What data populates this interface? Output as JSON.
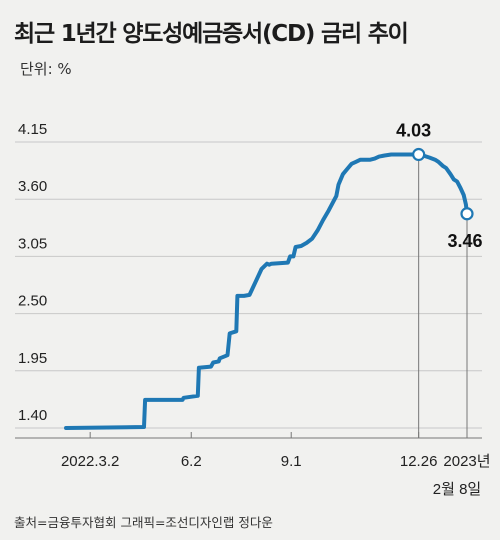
{
  "title": "최근 1년간 양도성예금증서(CD) 금리 추이",
  "unit_label": "단위: %",
  "footer": "출처=금융투자협회  그래픽=조선디자인랩 정다운",
  "colors": {
    "line": "#1f78b4",
    "grid": "#c8c8c8",
    "axis": "#777777",
    "background": "#f1f1ef"
  },
  "chart_data": {
    "type": "line",
    "title": "최근 1년간 양도성예금증서(CD) 금리 추이",
    "ylabel": "%",
    "ylim": [
      1.4,
      4.15
    ],
    "yticks": [
      "1.40",
      "1.95",
      "2.50",
      "3.05",
      "3.60",
      "4.15"
    ],
    "xticks": [
      "2022.3.2",
      "6.2",
      "9.1",
      "12.26",
      "2023년"
    ],
    "xtick_sublabel": "2월 8일",
    "x_range": [
      "2022-02-08",
      "2023-02-08"
    ],
    "grid": true,
    "series": [
      {
        "dates": [
          "2022-02-08",
          "2022-04-20",
          "2022-04-21",
          "2022-05-25",
          "2022-05-26",
          "2022-06-08",
          "2022-06-09",
          "2022-06-20",
          "2022-06-22",
          "2022-06-27",
          "2022-06-28",
          "2022-07-05",
          "2022-07-07",
          "2022-07-13",
          "2022-07-14",
          "2022-07-20",
          "2022-07-25",
          "2022-08-05",
          "2022-08-10",
          "2022-08-12",
          "2022-08-14",
          "2022-08-29",
          "2022-08-31",
          "2022-09-03",
          "2022-09-05",
          "2022-09-10",
          "2022-09-15",
          "2022-09-20",
          "2022-09-25",
          "2022-09-30",
          "2022-10-05",
          "2022-10-10",
          "2022-10-12",
          "2022-10-14",
          "2022-10-18",
          "2022-10-22",
          "2022-10-26",
          "2022-10-30",
          "2022-11-03",
          "2022-11-07",
          "2022-11-12",
          "2022-11-16",
          "2022-11-20",
          "2022-11-25",
          "2022-12-01",
          "2022-12-05",
          "2022-12-10",
          "2022-12-15",
          "2022-12-20",
          "2022-12-26",
          "2022-12-30",
          "2023-01-05",
          "2023-01-10",
          "2023-01-13",
          "2023-01-17",
          "2023-01-20",
          "2023-01-24",
          "2023-01-27",
          "2023-01-30",
          "2023-02-02",
          "2023-02-05",
          "2023-02-07",
          "2023-02-08"
        ],
        "values": [
          1.4,
          1.41,
          1.67,
          1.67,
          1.69,
          1.71,
          1.98,
          1.99,
          2.03,
          2.04,
          2.07,
          2.1,
          2.31,
          2.33,
          2.67,
          2.67,
          2.68,
          2.93,
          2.98,
          2.97,
          2.98,
          2.99,
          3.05,
          3.05,
          3.14,
          3.15,
          3.18,
          3.22,
          3.3,
          3.4,
          3.49,
          3.59,
          3.63,
          3.74,
          3.84,
          3.89,
          3.94,
          3.96,
          3.98,
          3.98,
          3.98,
          3.99,
          4.01,
          4.02,
          4.03,
          4.03,
          4.03,
          4.03,
          4.03,
          4.03,
          4.02,
          4.0,
          3.98,
          3.96,
          3.92,
          3.9,
          3.84,
          3.79,
          3.77,
          3.71,
          3.64,
          3.55,
          3.46
        ]
      }
    ],
    "annotations": [
      {
        "date": "2022-12-26",
        "value": "4.03"
      },
      {
        "date": "2023-02-08",
        "value": "3.46"
      }
    ]
  }
}
